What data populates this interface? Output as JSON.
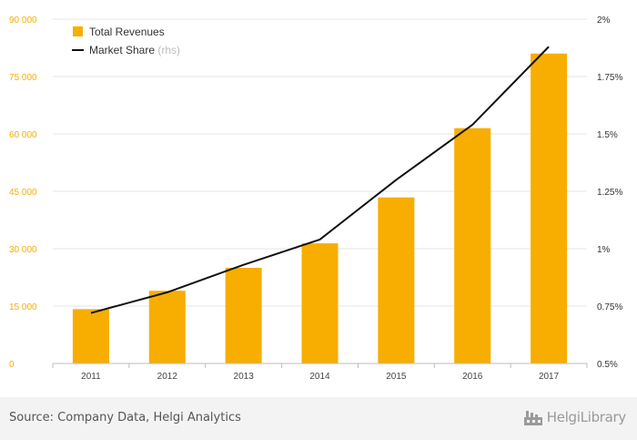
{
  "chart_data": {
    "type": "bar",
    "categories": [
      "2011",
      "2012",
      "2013",
      "2014",
      "2015",
      "2016",
      "2017"
    ],
    "series": [
      {
        "name": "Total Revenues",
        "type": "bar",
        "axis": "left",
        "color": "#f7ae00",
        "values": [
          14200,
          19000,
          25000,
          31400,
          43400,
          61500,
          81000
        ]
      },
      {
        "name": "Market Share",
        "suffix": "(rhs)",
        "type": "line",
        "axis": "right",
        "color": "#111111",
        "values": [
          0.72,
          0.81,
          0.93,
          1.04,
          1.3,
          1.54,
          1.88
        ]
      }
    ],
    "y_left": {
      "ticks": [
        "90 000",
        "75 000",
        "60 000",
        "45 000",
        "30 000",
        "15 000",
        "0"
      ],
      "min": 0,
      "max": 90000,
      "color": "#f7ae00"
    },
    "y_right": {
      "ticks": [
        "2%",
        "1.75%",
        "1.5%",
        "1.25%",
        "1%",
        "0.75%",
        "0.5%"
      ],
      "min": 0.5,
      "max": 2.0
    },
    "grid": true,
    "legend_position": "top-left"
  },
  "footer": {
    "source": "Source: Company Data, Helgi Analytics",
    "brand": "HelgiLibrary"
  },
  "colors": {
    "bar": "#f7ae00",
    "line": "#111111",
    "grid": "#e6e6e6",
    "footer_bg": "#f3f3f3"
  },
  "icons": {
    "brand_logo": "helgi-factory-logo-icon"
  }
}
